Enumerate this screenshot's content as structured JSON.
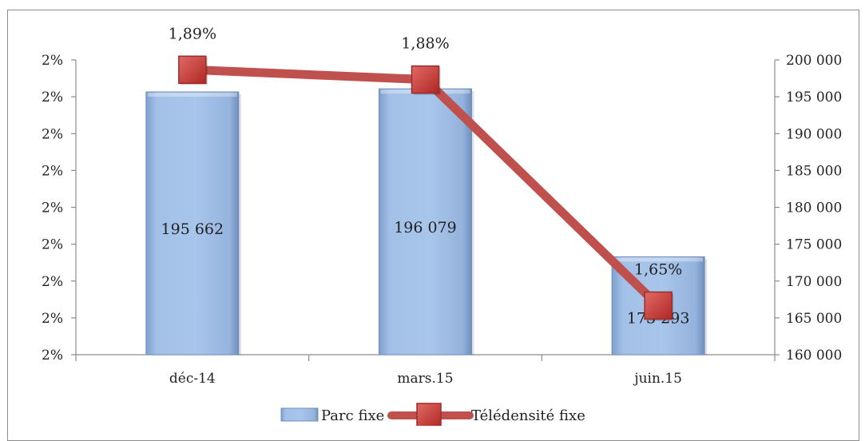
{
  "chart_data": {
    "type": "bar",
    "categories": [
      "déc-14",
      "mars.15",
      "juin.15"
    ],
    "series": [
      {
        "name": "Parc fixe",
        "kind": "bar",
        "axis": "right",
        "values": [
          195662,
          196079,
          173293
        ],
        "labels": [
          "195 662",
          "196 079",
          "173 293"
        ],
        "color": "#9dbde6"
      },
      {
        "name": "Télédensité fixe",
        "kind": "line",
        "axis": "left",
        "values": [
          1.89,
          1.88,
          1.65
        ],
        "labels": [
          "1,89%",
          "1,88%",
          "1,65%"
        ],
        "color": "#c0504d"
      }
    ],
    "left_axis": {
      "ylim": [
        1.6,
        1.9
      ],
      "tick_labels": [
        "2%",
        "2%",
        "2%",
        "2%",
        "2%",
        "2%",
        "2%",
        "2%",
        "2%"
      ]
    },
    "right_axis": {
      "ylim": [
        160000,
        200000
      ],
      "tick_labels": [
        "200 000",
        "195 000",
        "190 000",
        "185 000",
        "180 000",
        "175 000",
        "170 000",
        "165 000",
        "160 000"
      ]
    },
    "grid": false,
    "legend_position": "bottom"
  }
}
